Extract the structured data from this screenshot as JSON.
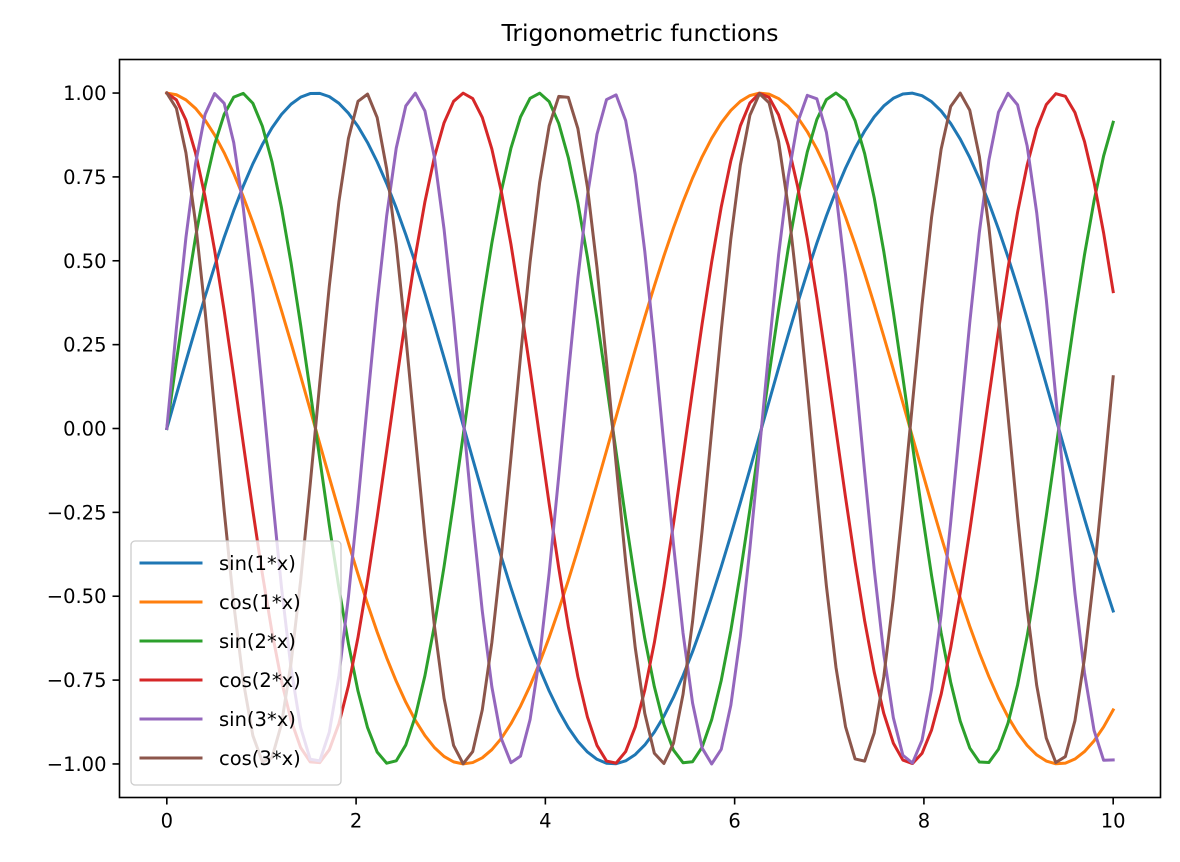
{
  "chart_data": {
    "type": "line",
    "title": "Trigonometric functions",
    "xlabel": "",
    "ylabel": "",
    "xlim": [
      -0.5,
      10.5
    ],
    "ylim": [
      -1.1,
      1.1
    ],
    "x_ticks": [
      0,
      2,
      4,
      6,
      8,
      10
    ],
    "x_tick_labels": [
      "0",
      "2",
      "4",
      "6",
      "8",
      "10"
    ],
    "y_ticks": [
      1.0,
      0.75,
      0.5,
      0.25,
      0.0,
      -0.25,
      -0.5,
      -0.75,
      -1.0
    ],
    "y_tick_labels": [
      "1.00",
      "0.75",
      "0.50",
      "0.25",
      "0.00",
      "−0.25",
      "−0.50",
      "−0.75",
      "−1.00"
    ],
    "grid": false,
    "legend_position": "lower-left",
    "x": {
      "start": 0,
      "end": 10,
      "num_points": 100
    },
    "series": [
      {
        "name": "sin(1*x)",
        "func": "sin",
        "freq": 1,
        "color": "#1f77b4"
      },
      {
        "name": "cos(1*x)",
        "func": "cos",
        "freq": 1,
        "color": "#ff7f0e"
      },
      {
        "name": "sin(2*x)",
        "func": "sin",
        "freq": 2,
        "color": "#2ca02c"
      },
      {
        "name": "cos(2*x)",
        "func": "cos",
        "freq": 2,
        "color": "#d62728"
      },
      {
        "name": "sin(3*x)",
        "func": "sin",
        "freq": 3,
        "color": "#9467bd"
      },
      {
        "name": "cos(3*x)",
        "func": "cos",
        "freq": 3,
        "color": "#8c564b"
      }
    ]
  }
}
